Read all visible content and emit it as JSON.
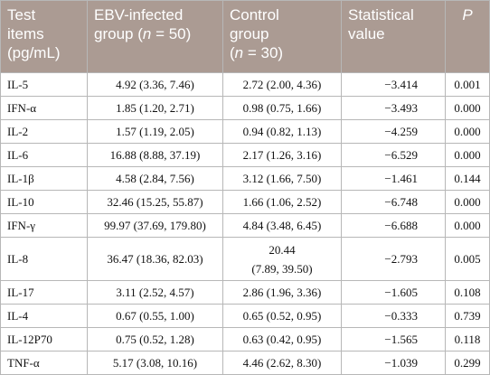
{
  "header": {
    "col1_line1": "Test",
    "col1_line2": "items",
    "col1_line3": "(pg/mL)",
    "col2_line1": "EBV-infected",
    "col2_pre": "group (",
    "col2_n": "n",
    "col2_post": " = 50)",
    "col3_line1": "Control",
    "col3_line2": "group",
    "col3_pre": "(",
    "col3_n": "n",
    "col3_post": " = 30)",
    "col4_line1": "Statistical",
    "col4_line2": "value",
    "col5": "P"
  },
  "rows": [
    {
      "item": "IL-5",
      "ebv": "4.92 (3.36, 7.46)",
      "control": "2.72 (2.00, 4.36)",
      "stat": "−3.414",
      "p": "0.001"
    },
    {
      "item": "IFN-α",
      "ebv": "1.85 (1.20, 2.71)",
      "control": "0.98 (0.75, 1.66)",
      "stat": "−3.493",
      "p": "0.000"
    },
    {
      "item": "IL-2",
      "ebv": "1.57 (1.19, 2.05)",
      "control": "0.94 (0.82, 1.13)",
      "stat": "−4.259",
      "p": "0.000"
    },
    {
      "item": "IL-6",
      "ebv": "16.88 (8.88, 37.19)",
      "control": "2.17 (1.26, 3.16)",
      "stat": "−6.529",
      "p": "0.000"
    },
    {
      "item": "IL-1β",
      "ebv": "4.58 (2.84, 7.56)",
      "control": "3.12 (1.66, 7.50)",
      "stat": "−1.461",
      "p": "0.144"
    },
    {
      "item": "IL-10",
      "ebv": "32.46 (15.25, 55.87)",
      "control": "1.66 (1.06, 2.52)",
      "stat": "−6.748",
      "p": "0.000"
    },
    {
      "item": "IFN-γ",
      "ebv": "99.97 (37.69, 179.80)",
      "control": "4.84 (3.48, 6.45)",
      "stat": "−6.688",
      "p": "0.000"
    },
    {
      "item": "IL-8",
      "ebv": "36.47 (18.36, 82.03)",
      "control_line1": "20.44",
      "control_line2": "(7.89, 39.50)",
      "stat": "−2.793",
      "p": "0.005"
    },
    {
      "item": "IL-17",
      "ebv": "3.11 (2.52, 4.57)",
      "control": "2.86 (1.96, 3.36)",
      "stat": "−1.605",
      "p": "0.108"
    },
    {
      "item": "IL-4",
      "ebv": "0.67 (0.55, 1.00)",
      "control": "0.65 (0.52, 0.95)",
      "stat": "−0.333",
      "p": "0.739"
    },
    {
      "item": "IL-12P70",
      "ebv": "0.75 (0.52, 1.28)",
      "control": "0.63 (0.42, 0.95)",
      "stat": "−1.565",
      "p": "0.118"
    },
    {
      "item": "TNF-α",
      "ebv": "5.17 (3.08, 10.16)",
      "control": "4.46 (2.62, 8.30)",
      "stat": "−1.039",
      "p": "0.299"
    }
  ]
}
